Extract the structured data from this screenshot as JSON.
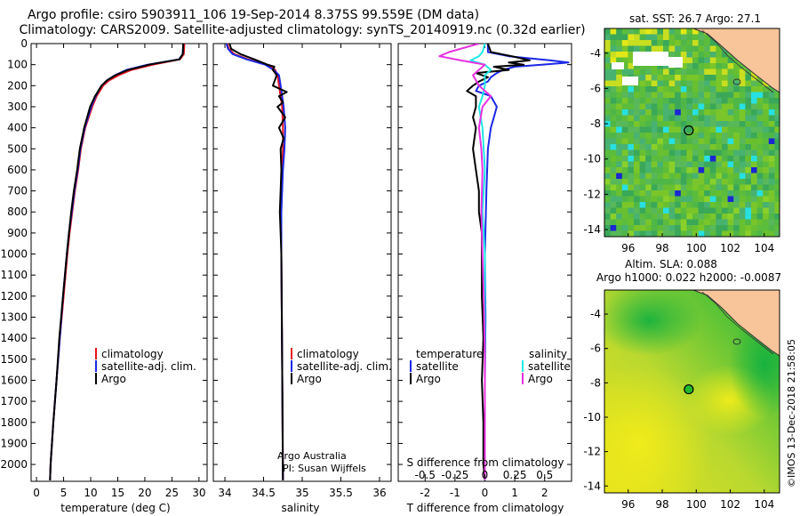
{
  "header": {
    "title_line1": "Argo profile: csiro 5903911_106 19-Sep-2014 8.375S 99.559E (DM data)",
    "title_line2": "Climatology: CARS2009. Satellite-adjusted climatology: synTS_20140919.nc (0.32d earlier)"
  },
  "colors": {
    "climatology": "#e8141e",
    "satellite": "#1a28e6",
    "argo": "#000000",
    "satellite_salinity": "#20e8e8",
    "argo_salinity": "#e830e0",
    "land": "#f8c49a"
  },
  "chart_data": [
    {
      "type": "line",
      "name": "temperature-profile",
      "xlabel": "temperature (deg C)",
      "ylabel": "",
      "xlim": [
        -1,
        31.5
      ],
      "ylim": [
        2080,
        0
      ],
      "xticks": [
        "0",
        "5",
        "10",
        "15",
        "20",
        "25",
        "30"
      ],
      "xtick_values": [
        0,
        5,
        10,
        15,
        20,
        25,
        30
      ],
      "yticks": [
        "0",
        "100",
        "200",
        "300",
        "400",
        "500",
        "600",
        "700",
        "800",
        "900",
        "1000",
        "1100",
        "1200",
        "1300",
        "1400",
        "1500",
        "1600",
        "1700",
        "1800",
        "1900",
        "2000"
      ],
      "ytick_values": [
        0,
        100,
        200,
        300,
        400,
        500,
        600,
        700,
        800,
        900,
        1000,
        1100,
        1200,
        1300,
        1400,
        1500,
        1600,
        1700,
        1800,
        1900,
        2000
      ],
      "legend": [
        "climatology",
        "satellite-adj. clim.",
        "Argo"
      ],
      "series": [
        {
          "name": "climatology",
          "depth": [
            0,
            50,
            75,
            100,
            125,
            150,
            175,
            200,
            250,
            300,
            400,
            500,
            600,
            700,
            800,
            900,
            1000,
            1200,
            1400,
            1600,
            1800,
            2000,
            2075
          ],
          "values": [
            27.3,
            27.2,
            26.5,
            21.5,
            17.5,
            15.2,
            13.4,
            12.3,
            11.1,
            10.3,
            9.0,
            8.2,
            7.7,
            7.1,
            6.6,
            6.1,
            5.7,
            5.0,
            4.3,
            3.7,
            3.1,
            2.6,
            2.5
          ]
        },
        {
          "name": "satellite-adj. clim.",
          "depth": [
            0,
            50,
            75,
            100,
            125,
            150,
            175,
            200,
            250,
            300,
            400,
            500,
            600,
            700,
            800,
            900,
            1000,
            1200,
            1400,
            1600,
            1800,
            2000,
            2075
          ],
          "values": [
            27.1,
            27.0,
            26.3,
            20.5,
            16.6,
            14.5,
            13.0,
            12.0,
            10.9,
            10.1,
            8.9,
            8.1,
            7.6,
            7.0,
            6.5,
            6.0,
            5.6,
            4.9,
            4.3,
            3.7,
            3.1,
            2.6,
            2.5
          ]
        },
        {
          "name": "Argo",
          "depth": [
            0,
            50,
            75,
            100,
            125,
            150,
            175,
            200,
            250,
            300,
            400,
            500,
            600,
            700,
            800,
            900,
            1000,
            1200,
            1400,
            1600,
            1800,
            2000,
            2075
          ],
          "values": [
            27.1,
            27.0,
            26.4,
            20.8,
            16.9,
            14.6,
            13.0,
            12.0,
            10.8,
            9.9,
            8.8,
            8.0,
            7.5,
            6.9,
            6.4,
            6.0,
            5.6,
            4.9,
            4.2,
            3.7,
            3.1,
            2.6,
            2.5
          ]
        }
      ]
    },
    {
      "type": "line",
      "name": "salinity-profile",
      "xlabel": "salinity",
      "xlim": [
        33.85,
        36.15
      ],
      "ylim": [
        2080,
        0
      ],
      "xticks": [
        "34",
        "34.5",
        "35",
        "35.5",
        "36"
      ],
      "xtick_values": [
        34,
        34.5,
        35,
        35.5,
        36
      ],
      "legend": [
        "climatology",
        "satellite-adj. clim.",
        "Argo"
      ],
      "series": [
        {
          "name": "climatology",
          "depth": [
            0,
            25,
            50,
            75,
            100,
            125,
            150,
            200,
            300,
            400,
            500,
            600,
            800,
            1000,
            1500,
            2075
          ],
          "values": [
            34.03,
            34.05,
            34.12,
            34.3,
            34.55,
            34.65,
            34.68,
            34.7,
            34.74,
            34.75,
            34.75,
            34.74,
            34.73,
            34.73,
            34.74,
            34.75
          ]
        },
        {
          "name": "satellite-adj. clim.",
          "depth": [
            0,
            25,
            50,
            75,
            100,
            125,
            150,
            200,
            300,
            400,
            500,
            600,
            800,
            1000,
            1500,
            2075
          ],
          "values": [
            34.02,
            34.04,
            34.1,
            34.28,
            34.52,
            34.63,
            34.7,
            34.72,
            34.76,
            34.78,
            34.77,
            34.75,
            34.73,
            34.73,
            34.74,
            34.75
          ]
        },
        {
          "name": "Argo",
          "depth": [
            0,
            25,
            50,
            75,
            100,
            110,
            125,
            150,
            200,
            230,
            250,
            280,
            300,
            350,
            400,
            450,
            500,
            600,
            700,
            800,
            900,
            1000,
            1500,
            2075
          ],
          "values": [
            34.06,
            34.08,
            34.2,
            34.38,
            34.55,
            34.64,
            34.62,
            34.67,
            34.62,
            34.8,
            34.7,
            34.75,
            34.68,
            34.78,
            34.7,
            34.76,
            34.72,
            34.73,
            34.72,
            34.71,
            34.72,
            34.73,
            34.74,
            34.75
          ]
        }
      ],
      "annotations": [
        "Argo Australia",
        "PI: Susan Wijffels"
      ]
    },
    {
      "type": "line",
      "name": "difference-profile",
      "xlabel": "T difference from climatology",
      "xlabel_top": "S difference from climatology",
      "xlim": [
        -2.9,
        2.9
      ],
      "ylim": [
        2080,
        0
      ],
      "xticks": [
        "-2",
        "-1",
        "0",
        "1",
        "2"
      ],
      "xtick_values": [
        -2,
        -1,
        0,
        1,
        2
      ],
      "s_xticks": [
        "-0.5",
        "-0.25",
        "0",
        "0.25",
        "0.5"
      ],
      "s_xtick_values": [
        -0.5,
        -0.25,
        0,
        0.25,
        0.5
      ],
      "legend_temperature": [
        "temperature",
        "satellite",
        "Argo"
      ],
      "legend_salinity": [
        "salinity",
        "satellite",
        "Argo"
      ],
      "series": [
        {
          "name": "T satellite",
          "depth": [
            0,
            40,
            60,
            80,
            90,
            100,
            110,
            125,
            140,
            160,
            180,
            200,
            225,
            250,
            300,
            350,
            400,
            500,
            700,
            1000,
            1300,
            1600,
            2000,
            2075
          ],
          "values": [
            0.1,
            0.1,
            0.8,
            2.2,
            2.8,
            1.9,
            1.0,
            0.6,
            0.4,
            0.2,
            0.1,
            -0.2,
            -0.3,
            0.2,
            0.4,
            0.3,
            0.2,
            0.1,
            0.05,
            0.0,
            0.02,
            0.0,
            0.0,
            0.0
          ]
        },
        {
          "name": "T Argo",
          "depth": [
            0,
            40,
            60,
            80,
            90,
            100,
            110,
            125,
            140,
            160,
            180,
            200,
            225,
            250,
            300,
            350,
            400,
            500,
            600,
            700,
            800,
            900,
            1000,
            1200,
            1400,
            1600,
            1800,
            2000,
            2075
          ],
          "values": [
            0.1,
            0.2,
            0.9,
            1.5,
            0.8,
            1.3,
            0.3,
            0.8,
            -0.3,
            0.1,
            -0.2,
            -0.4,
            -0.6,
            -0.3,
            -0.3,
            -0.4,
            -0.3,
            -0.4,
            -0.3,
            -0.2,
            -0.2,
            -0.1,
            -0.1,
            -0.1,
            -0.05,
            -0.1,
            -0.05,
            -0.05,
            0.0
          ]
        },
        {
          "name": "S satellite",
          "depth": [
            0,
            40,
            60,
            80,
            100,
            125,
            150,
            200,
            250,
            300,
            400,
            600,
            800,
            1000,
            1500,
            2075
          ],
          "values": [
            0.0,
            -0.02,
            -0.05,
            -0.12,
            0.0,
            0.05,
            0.0,
            0.0,
            -0.02,
            -0.05,
            -0.02,
            0.0,
            -0.02,
            0.0,
            0.0,
            0.0
          ]
        },
        {
          "name": "S Argo",
          "depth": [
            0,
            40,
            60,
            80,
            100,
            125,
            150,
            200,
            250,
            300,
            400,
            500,
            600,
            800,
            1000,
            1200,
            1500,
            2075
          ],
          "values": [
            -0.05,
            -0.3,
            -0.38,
            -0.2,
            0.0,
            -0.05,
            -0.1,
            -0.05,
            0.05,
            -0.02,
            -0.05,
            -0.03,
            -0.02,
            -0.03,
            -0.02,
            -0.01,
            0.0,
            0.0
          ]
        }
      ]
    },
    {
      "type": "heatmap",
      "name": "sst-map",
      "title": "sat. SST: 26.7 Argo: 27.1",
      "xlim": [
        94.6,
        104.9
      ],
      "ylim": [
        -14.4,
        -2.6
      ],
      "xticks": [
        "96",
        "98",
        "100",
        "102",
        "104"
      ],
      "xtick_values": [
        96,
        98,
        100,
        102,
        104
      ],
      "yticks": [
        "-4",
        "-6",
        "-8",
        "-10",
        "-12",
        "-14"
      ],
      "ytick_values": [
        -4,
        -6,
        -8,
        -10,
        -12,
        -14
      ],
      "float_position": [
        99.559,
        -8.375
      ]
    },
    {
      "type": "heatmap",
      "name": "sla-map",
      "title": "Altim. SLA: 0.088",
      "subtitle": "Argo h1000: 0.022 h2000: -0.0087",
      "xlim": [
        94.6,
        104.9
      ],
      "ylim": [
        -14.4,
        -2.6
      ],
      "xticks": [
        "96",
        "98",
        "100",
        "102",
        "104"
      ],
      "xtick_values": [
        96,
        98,
        100,
        102,
        104
      ],
      "yticks": [
        "-4",
        "-6",
        "-8",
        "-10",
        "-12",
        "-14"
      ],
      "ytick_values": [
        -4,
        -6,
        -8,
        -10,
        -12,
        -14
      ],
      "float_position": [
        99.559,
        -8.375
      ]
    }
  ],
  "footer": {
    "credit": "©IMOS 13-Dec-2018 21:58:05"
  }
}
